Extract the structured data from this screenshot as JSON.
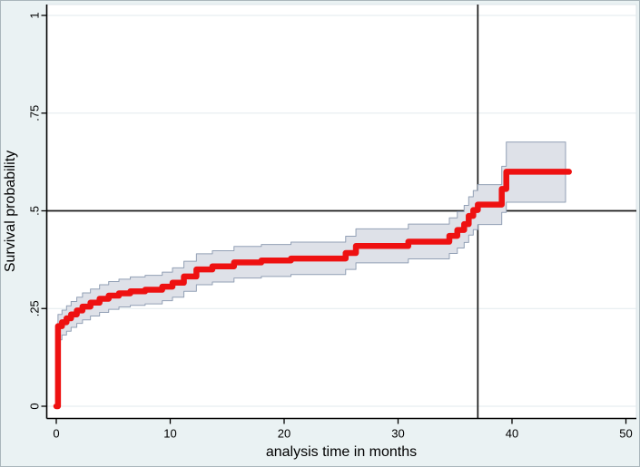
{
  "figure": {
    "background_color": "#eaf2f3",
    "plot_background_color": "#ffffff",
    "gridline_color": "#e2eaed",
    "axis_color": "#000000",
    "reference_line_color": "#1a1a1a"
  },
  "chart_data": {
    "type": "line",
    "subtype": "survival-step-curve-with-confidence-band",
    "title": "",
    "xlabel": "analysis time in months",
    "ylabel": "Survival probability",
    "xlim": [
      0,
      50
    ],
    "ylim": [
      0,
      1
    ],
    "xtick_values": [
      0,
      10,
      20,
      30,
      40,
      50
    ],
    "xtick_labels": [
      "0",
      "10",
      "20",
      "30",
      "40",
      "50"
    ],
    "ytick_values": [
      0,
      0.25,
      0.5,
      0.75,
      1
    ],
    "ytick_labels": [
      "0",
      ".25",
      ".5",
      ".75",
      "1"
    ],
    "grid_y_values": [
      0,
      0.25,
      0.75,
      1
    ],
    "reference_lines": {
      "y": 0.5,
      "x": 37
    },
    "legend": "none",
    "band": {
      "fill_color": "#dee1e8",
      "edge_color": "#92a0b5",
      "band_end_t": 44.7
    },
    "series": [
      {
        "name": "survival-estimate",
        "color": "#ee1111",
        "line_width": 6.5,
        "start": {
          "t": 0,
          "s": 0
        },
        "end_t": 45,
        "steps": [
          {
            "t": 0.15,
            "s": 0.205,
            "lo": 0.17,
            "hi": 0.235
          },
          {
            "t": 0.5,
            "s": 0.215,
            "lo": 0.182,
            "hi": 0.246
          },
          {
            "t": 0.9,
            "s": 0.225,
            "lo": 0.192,
            "hi": 0.257
          },
          {
            "t": 1.3,
            "s": 0.235,
            "lo": 0.202,
            "hi": 0.268
          },
          {
            "t": 1.8,
            "s": 0.245,
            "lo": 0.212,
            "hi": 0.279
          },
          {
            "t": 2.3,
            "s": 0.255,
            "lo": 0.221,
            "hi": 0.29
          },
          {
            "t": 3.0,
            "s": 0.265,
            "lo": 0.231,
            "hi": 0.3
          },
          {
            "t": 3.8,
            "s": 0.275,
            "lo": 0.24,
            "hi": 0.311
          },
          {
            "t": 4.6,
            "s": 0.283,
            "lo": 0.248,
            "hi": 0.319
          },
          {
            "t": 5.5,
            "s": 0.289,
            "lo": 0.254,
            "hi": 0.325
          },
          {
            "t": 6.5,
            "s": 0.294,
            "lo": 0.258,
            "hi": 0.331
          },
          {
            "t": 7.8,
            "s": 0.298,
            "lo": 0.262,
            "hi": 0.335
          },
          {
            "t": 9.3,
            "s": 0.306,
            "lo": 0.27,
            "hi": 0.343
          },
          {
            "t": 10.2,
            "s": 0.316,
            "lo": 0.279,
            "hi": 0.354
          },
          {
            "t": 11.2,
            "s": 0.332,
            "lo": 0.294,
            "hi": 0.371
          },
          {
            "t": 12.3,
            "s": 0.35,
            "lo": 0.311,
            "hi": 0.39
          },
          {
            "t": 13.7,
            "s": 0.358,
            "lo": 0.318,
            "hi": 0.398
          },
          {
            "t": 15.6,
            "s": 0.368,
            "lo": 0.328,
            "hi": 0.409
          },
          {
            "t": 18.0,
            "s": 0.373,
            "lo": 0.332,
            "hi": 0.414
          },
          {
            "t": 20.6,
            "s": 0.378,
            "lo": 0.337,
            "hi": 0.42
          },
          {
            "t": 25.4,
            "s": 0.392,
            "lo": 0.35,
            "hi": 0.435
          },
          {
            "t": 26.3,
            "s": 0.41,
            "lo": 0.367,
            "hi": 0.454
          },
          {
            "t": 30.9,
            "s": 0.421,
            "lo": 0.377,
            "hi": 0.466
          },
          {
            "t": 34.5,
            "s": 0.436,
            "lo": 0.391,
            "hi": 0.482
          },
          {
            "t": 35.2,
            "s": 0.451,
            "lo": 0.405,
            "hi": 0.498
          },
          {
            "t": 35.8,
            "s": 0.466,
            "lo": 0.419,
            "hi": 0.514
          },
          {
            "t": 36.2,
            "s": 0.487,
            "lo": 0.438,
            "hi": 0.536
          },
          {
            "t": 36.6,
            "s": 0.502,
            "lo": 0.452,
            "hi": 0.552
          },
          {
            "t": 37.0,
            "s": 0.516,
            "lo": 0.465,
            "hi": 0.567
          },
          {
            "t": 39.1,
            "s": 0.556,
            "lo": 0.496,
            "hi": 0.614
          },
          {
            "t": 39.5,
            "s": 0.6,
            "lo": 0.522,
            "hi": 0.676
          }
        ]
      }
    ]
  }
}
